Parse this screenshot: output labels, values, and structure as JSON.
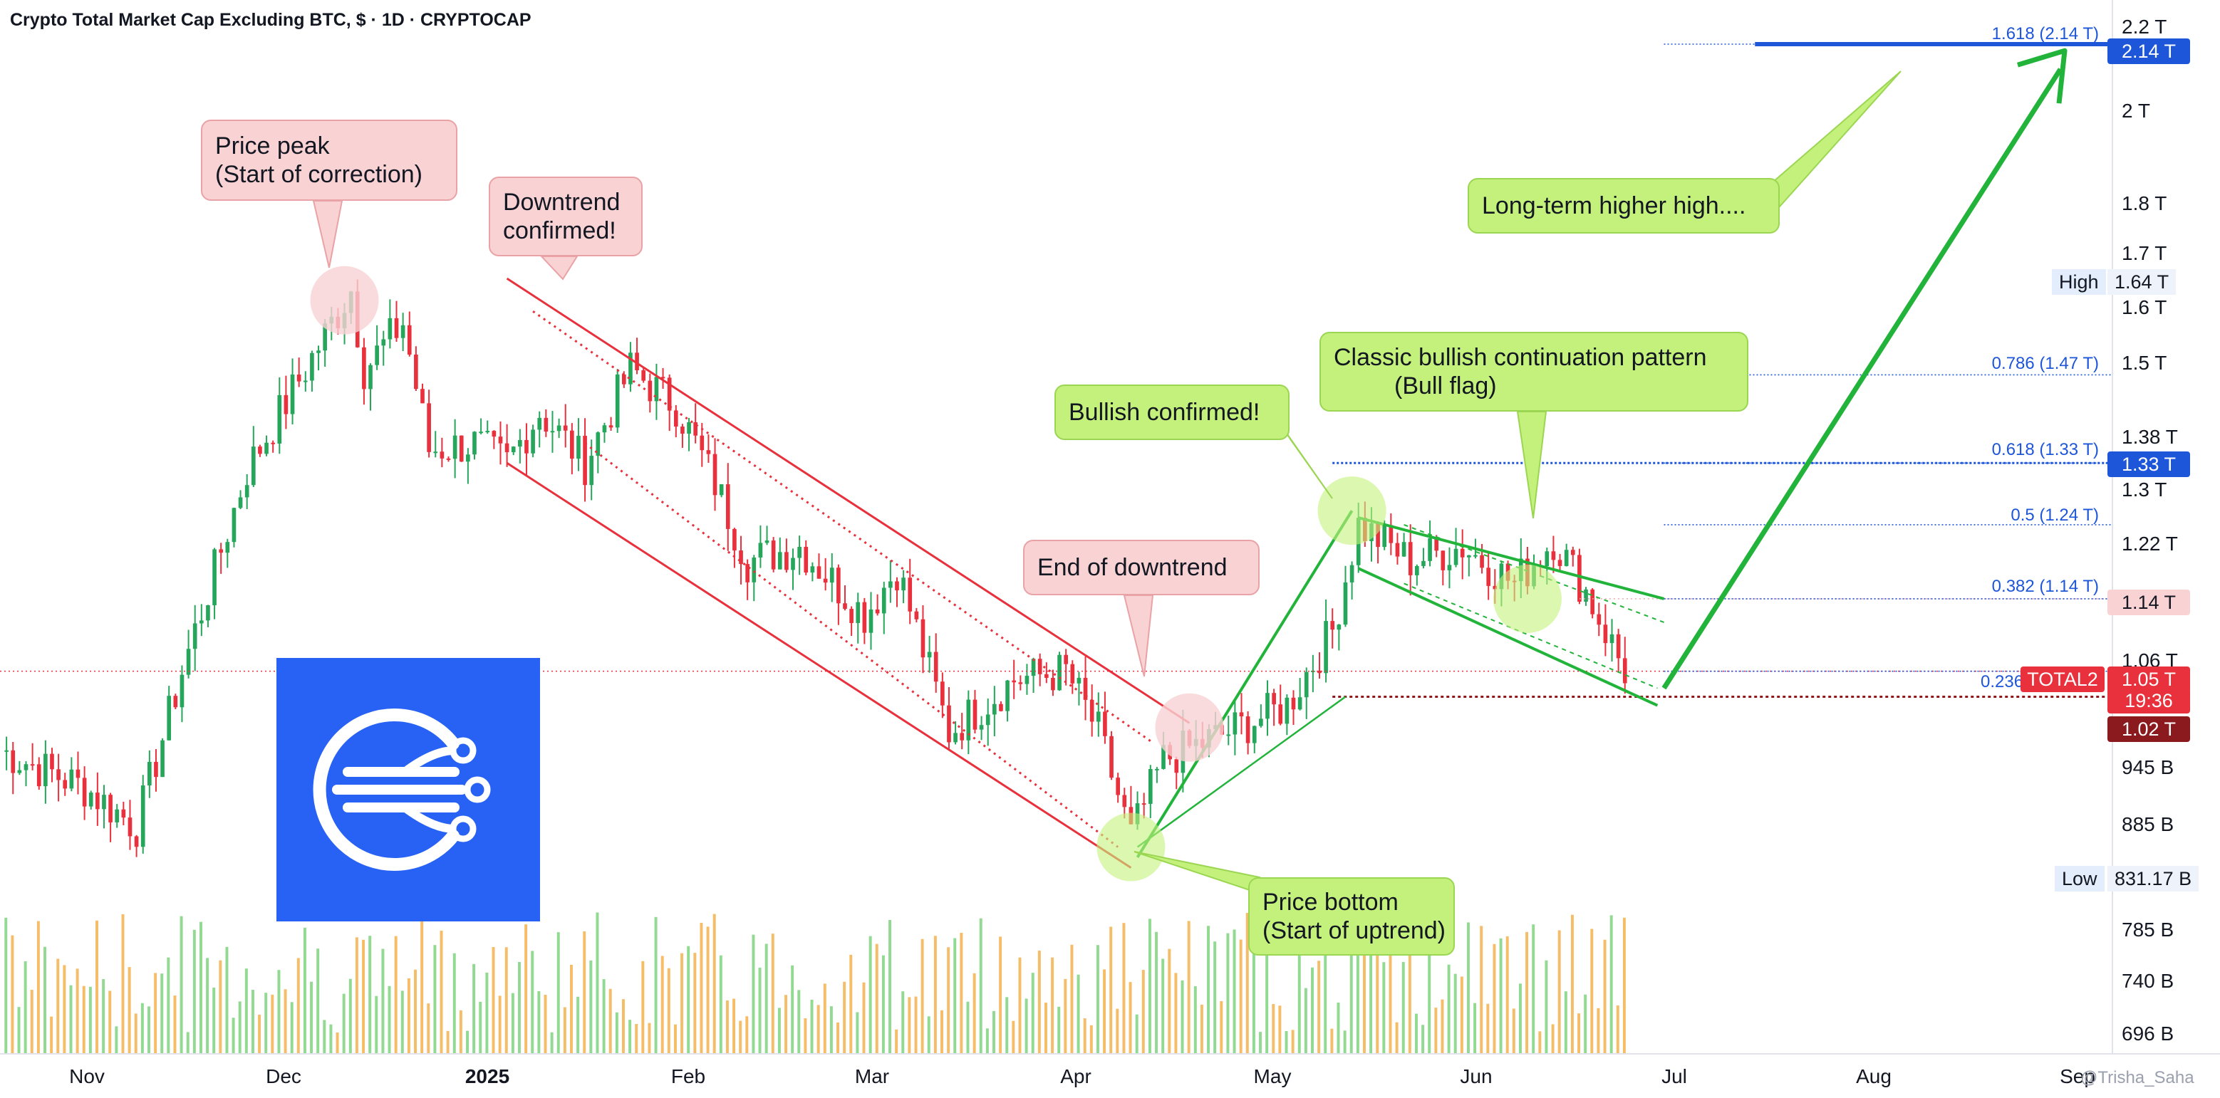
{
  "header": {
    "title": "Crypto Total Market Cap Excluding BTC, $ · 1D · CRYPTOCAP"
  },
  "colors": {
    "up": "#26a65b",
    "down": "#e8313c",
    "vol_up": "#7fd27f",
    "vol_down": "#f5b14f",
    "fib_blue": "#1e56d9",
    "trend_red": "#e8313c",
    "trend_green": "#22b43a",
    "callout_red": "#f9d2d4",
    "callout_green": "#c4f17b",
    "logo_bg": "#2862f5"
  },
  "watermark": "@Trisha_Saha",
  "callouts": [
    {
      "id": "price-peak",
      "text": "Price peak\n(Start of correction)",
      "style": "red"
    },
    {
      "id": "downtrend-confirmed",
      "text": "Downtrend\nconfirmed!",
      "style": "red"
    },
    {
      "id": "end-of-downtrend",
      "text": "End of downtrend",
      "style": "red"
    },
    {
      "id": "bullish-confirmed",
      "text": "Bullish confirmed!",
      "style": "green"
    },
    {
      "id": "bull-flag",
      "text": "Classic bullish continuation pattern\n         (Bull flag)",
      "style": "green"
    },
    {
      "id": "higher-high",
      "text": "Long-term higher high....",
      "style": "green"
    },
    {
      "id": "price-bottom",
      "text": "Price bottom\n(Start of uptrend)",
      "style": "green"
    }
  ],
  "price_axis": {
    "labels": [
      "2.2 T",
      "2 T",
      "1.8 T",
      "1.7 T",
      "1.6 T",
      "1.5 T",
      "1.38 T",
      "1.3 T",
      "1.22 T",
      "1.06 T",
      "945 B",
      "885 B",
      "785 B",
      "740 B",
      "696 B"
    ],
    "high_tag": {
      "label": "High",
      "value": "1.64 T"
    },
    "low_tag": {
      "label": "Low",
      "value": "831.17 B"
    },
    "badges": [
      {
        "text": "2.14 T",
        "color": "#1e56d9"
      },
      {
        "text": "1.33 T",
        "color": "#1e56d9"
      },
      {
        "text": "1.14 T",
        "color": "#f9d2d4",
        "text_color": "#131722"
      },
      {
        "text": "1.05 T",
        "color": "#e8313c"
      },
      {
        "text": "19:36",
        "color": "#e8313c"
      },
      {
        "text": "1.02 T",
        "color": "#8b1a1f"
      }
    ],
    "symbol_badge": "TOTAL2"
  },
  "time_axis": {
    "labels": [
      "Nov",
      "Dec",
      "2025",
      "Feb",
      "Mar",
      "Apr",
      "May",
      "Jun",
      "Jul",
      "Aug",
      "Sep"
    ]
  },
  "fib_levels": [
    {
      "label": "1.618 (2.14 T)",
      "value": 2.14
    },
    {
      "label": "0.786 (1.47 T)",
      "value": 1.47
    },
    {
      "label": "0.618 (1.33 T)",
      "value": 1.33
    },
    {
      "label": "0.5 (1.24 T)",
      "value": 1.24
    },
    {
      "label": "0.382 (1.14 T)",
      "value": 1.14
    },
    {
      "label": "0.236",
      "value": 1.05
    }
  ],
  "chart_data": {
    "type": "candlestick",
    "title": "Crypto Total Market Cap Excluding BTC, $ · 1D · CRYPTOCAP",
    "y_unit": "T USD",
    "y_scale": "log",
    "ylim": [
      0.68,
      2.25
    ],
    "xlim": [
      "2024-10-15",
      "2025-09-05"
    ],
    "current_price": 1.05,
    "session_high": 1.64,
    "session_low": 0.83117,
    "grid": false,
    "anchors": [
      {
        "date": "2024-10-15",
        "price": 0.96
      },
      {
        "date": "2024-10-28",
        "price": 0.92
      },
      {
        "date": "2024-11-05",
        "price": 0.88
      },
      {
        "date": "2024-11-12",
        "price": 1.05
      },
      {
        "date": "2024-11-22",
        "price": 1.32
      },
      {
        "date": "2024-12-01",
        "price": 1.48
      },
      {
        "date": "2024-12-08",
        "price": 1.62
      },
      {
        "date": "2024-12-10",
        "price": 1.48
      },
      {
        "date": "2024-12-16",
        "price": 1.56
      },
      {
        "date": "2024-12-20",
        "price": 1.35
      },
      {
        "date": "2024-12-27",
        "price": 1.36
      },
      {
        "date": "2025-01-01",
        "price": 1.33
      },
      {
        "date": "2025-01-06",
        "price": 1.41
      },
      {
        "date": "2025-01-13",
        "price": 1.33
      },
      {
        "date": "2025-01-20",
        "price": 1.48
      },
      {
        "date": "2025-01-27",
        "price": 1.42
      },
      {
        "date": "2025-02-02",
        "price": 1.3
      },
      {
        "date": "2025-02-07",
        "price": 1.19
      },
      {
        "date": "2025-02-15",
        "price": 1.21
      },
      {
        "date": "2025-02-25",
        "price": 1.12
      },
      {
        "date": "2025-03-02",
        "price": 1.18
      },
      {
        "date": "2025-03-10",
        "price": 0.98
      },
      {
        "date": "2025-03-20",
        "price": 1.04
      },
      {
        "date": "2025-03-28",
        "price": 1.05
      },
      {
        "date": "2025-04-02",
        "price": 0.98
      },
      {
        "date": "2025-04-07",
        "price": 0.87
      },
      {
        "date": "2025-04-12",
        "price": 0.95
      },
      {
        "date": "2025-04-22",
        "price": 0.98
      },
      {
        "date": "2025-05-01",
        "price": 1.01
      },
      {
        "date": "2025-05-08",
        "price": 1.1
      },
      {
        "date": "2025-05-12",
        "price": 1.24
      },
      {
        "date": "2025-05-20",
        "price": 1.19
      },
      {
        "date": "2025-05-28",
        "price": 1.21
      },
      {
        "date": "2025-06-05",
        "price": 1.16
      },
      {
        "date": "2025-06-11",
        "price": 1.22
      },
      {
        "date": "2025-06-16",
        "price": 1.15
      },
      {
        "date": "2025-06-22",
        "price": 1.05
      }
    ]
  }
}
